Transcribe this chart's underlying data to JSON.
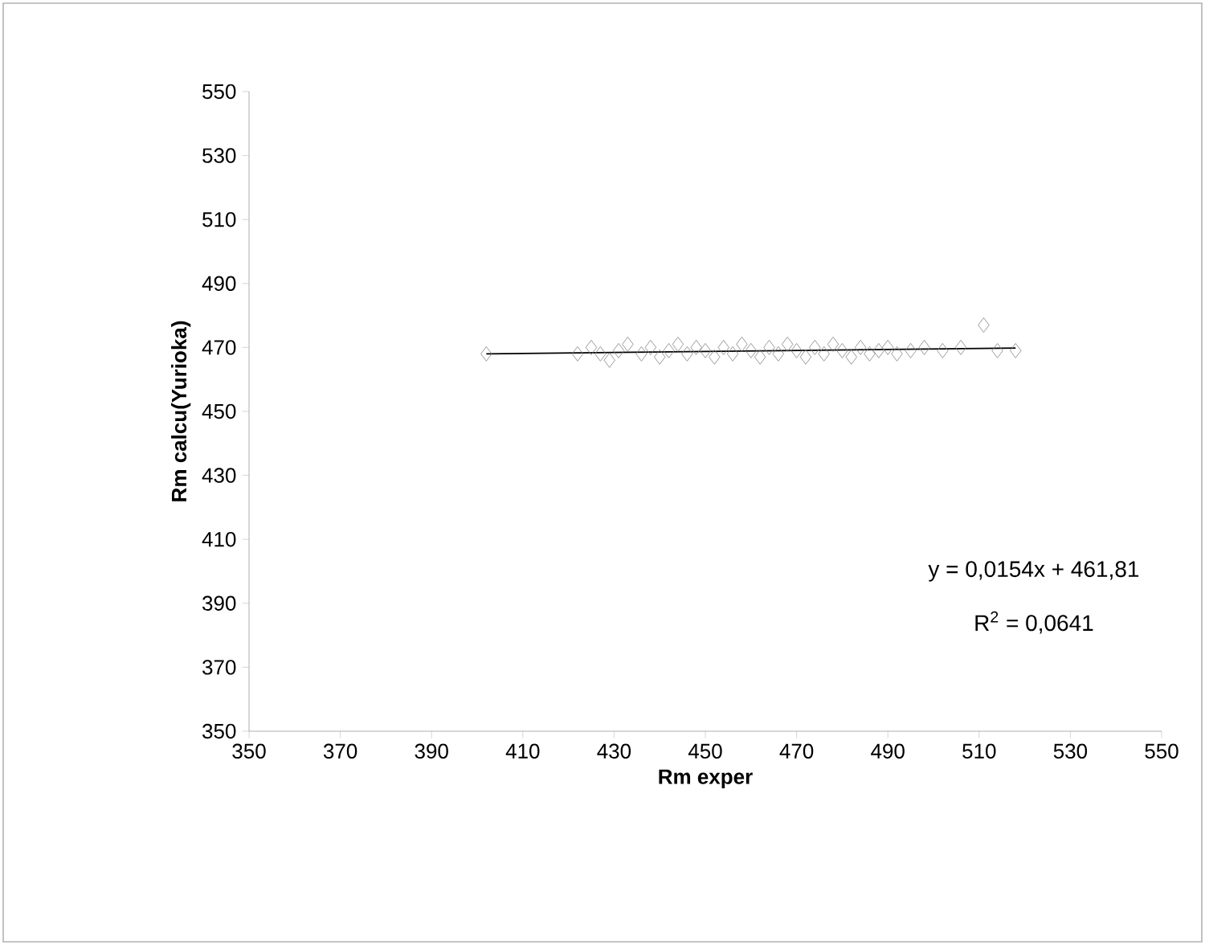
{
  "chart_data": {
    "type": "scatter",
    "xlabel": "Rm exper",
    "ylabel": "Rm calcu(Yurioka)",
    "xlim": [
      350,
      550
    ],
    "xticks": [
      350,
      370,
      390,
      410,
      430,
      450,
      470,
      490,
      510,
      530,
      550
    ],
    "ylim": [
      350,
      550
    ],
    "yticks": [
      350,
      370,
      390,
      410,
      430,
      450,
      470,
      490,
      510,
      530,
      550
    ],
    "grid": false,
    "marker": "diamond",
    "series": [
      {
        "color": "#808080",
        "x": [
          402,
          422,
          425,
          427,
          429,
          431,
          433,
          436,
          438,
          440,
          442,
          444,
          446,
          448,
          450,
          452,
          454,
          456,
          458,
          460,
          462,
          464,
          466,
          468,
          470,
          472,
          474,
          476,
          478,
          480,
          482,
          484,
          486,
          488,
          490,
          492,
          495,
          498,
          502,
          506,
          511,
          514,
          518
        ],
        "values": [
          468,
          468,
          470,
          468,
          466,
          469,
          471,
          468,
          470,
          467,
          469,
          471,
          468,
          470,
          469,
          467,
          470,
          468,
          471,
          469,
          467,
          470,
          468,
          471,
          469,
          467,
          470,
          468,
          471,
          469,
          467,
          470,
          468,
          469,
          470,
          468,
          469,
          470,
          469,
          470,
          477,
          469,
          469
        ]
      },
      {
        "type": "line",
        "marker": "none",
        "line_style": "solid",
        "color": "#000000",
        "x": [
          402,
          518
        ],
        "values": [
          468.0,
          469.8
        ]
      }
    ],
    "annotations": [
      "y = 0,0154x + 461,81",
      "R$^{2}$ = 0,0641"
    ]
  }
}
